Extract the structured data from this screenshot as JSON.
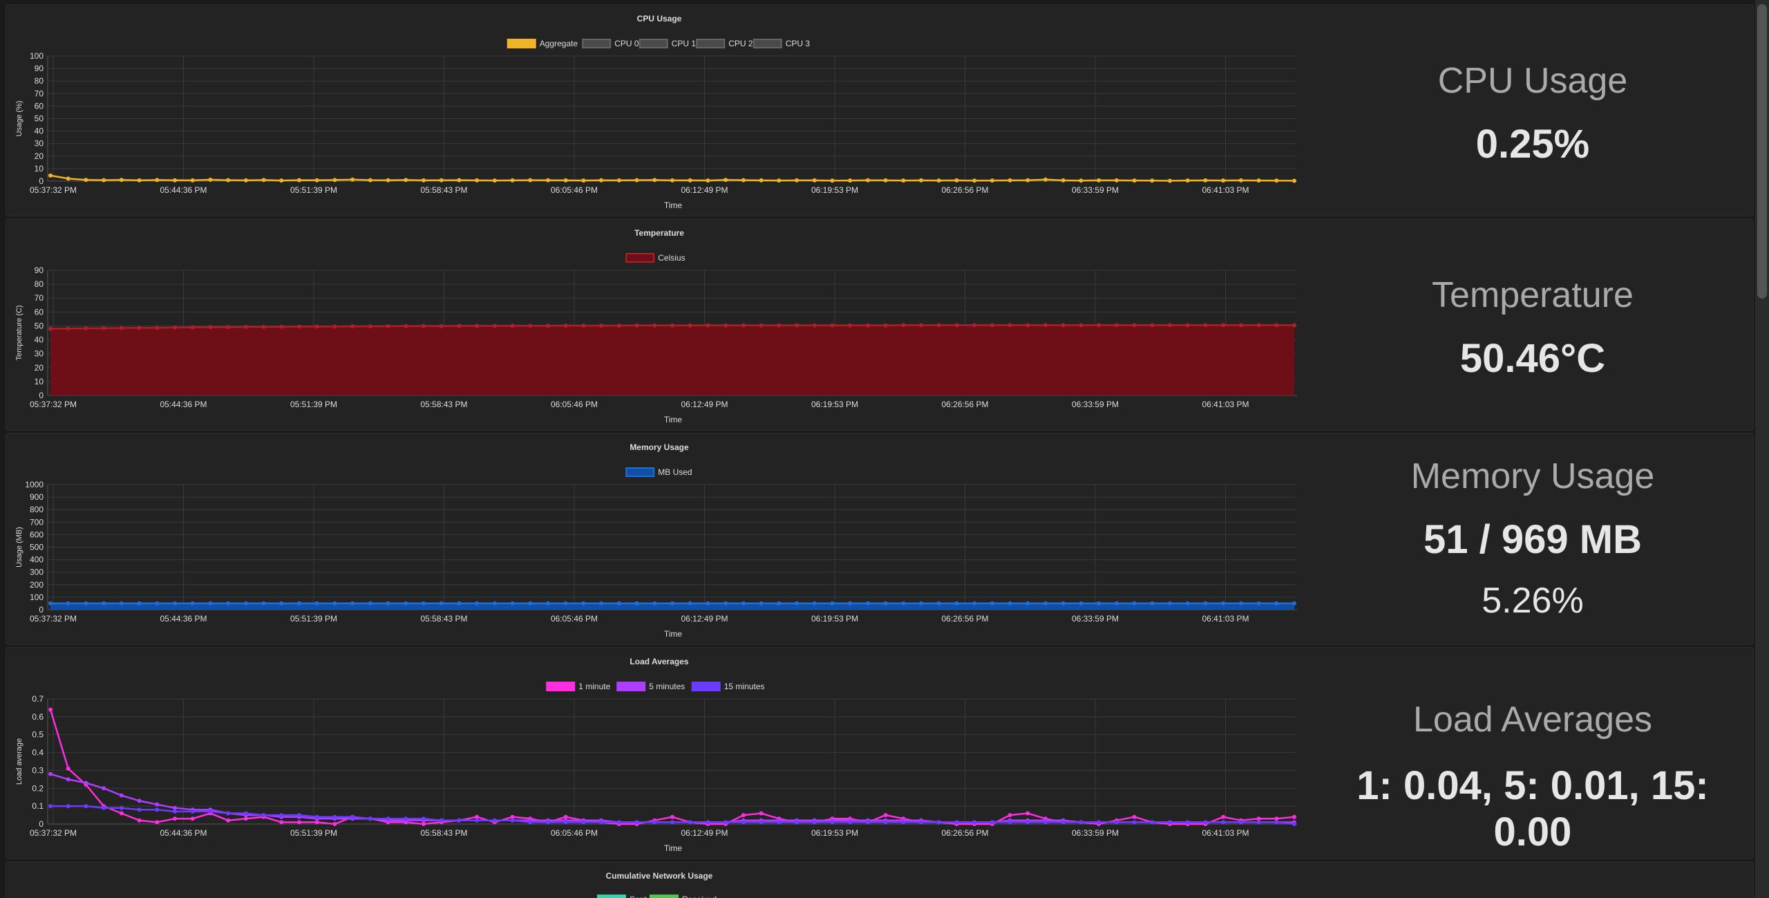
{
  "colors": {
    "background": "#1a1a1a",
    "panel": "#232323",
    "grid": "#3a3a3a",
    "text": "#dddddd"
  },
  "time_labels": [
    "05:37:32 PM",
    "05:44:36 PM",
    "05:51:39 PM",
    "05:58:43 PM",
    "06:05:46 PM",
    "06:12:49 PM",
    "06:19:53 PM",
    "06:26:56 PM",
    "06:33:59 PM",
    "06:41:03 PM"
  ],
  "panels": [
    {
      "id": "cpu",
      "stat_title": "CPU Usage",
      "stat_value": "0.25%"
    },
    {
      "id": "temp",
      "stat_title": "Temperature",
      "stat_value": "50.46°C"
    },
    {
      "id": "mem",
      "stat_title": "Memory Usage",
      "stat_value": "51 / 969 MB",
      "stat_sub": "5.26%"
    },
    {
      "id": "load",
      "stat_title": "Load Averages",
      "stat_value": "1: 0.04, 5: 0.01, 15: 0.00"
    },
    {
      "id": "net"
    }
  ],
  "chart_data": [
    {
      "type": "line",
      "title": "CPU Usage",
      "xlabel": "Time",
      "ylabel": "Usage (%)",
      "ylim": [
        0,
        100
      ],
      "yticks": [
        100,
        90,
        80,
        70,
        60,
        50,
        40,
        30,
        20,
        10,
        0
      ],
      "legend_position": "top",
      "series": [
        {
          "name": "Aggregate",
          "color": "#f0b429",
          "hidden": false,
          "values": [
            4.5,
            2,
            1,
            0.8,
            1,
            0.6,
            0.9,
            0.7,
            0.6,
            1.1,
            0.8,
            0.6,
            0.9,
            0.5,
            0.8,
            0.7,
            0.9,
            1.2,
            0.8,
            0.7,
            0.9,
            0.6,
            0.7,
            0.8,
            0.6,
            0.5,
            0.6,
            0.8,
            0.7,
            0.6,
            0.5,
            0.7,
            0.6,
            0.8,
            0.9,
            0.6,
            0.6,
            0.5,
            1,
            0.8,
            0.6,
            0.5,
            0.6,
            0.6,
            0.4,
            0.5,
            0.7,
            0.6,
            0.5,
            0.6,
            0.5,
            0.6,
            0.4,
            0.5,
            0.6,
            0.7,
            1.2,
            0.6,
            0.4,
            0.6,
            0.6,
            0.5,
            0.4,
            0.3,
            0.5,
            0.6,
            0.5,
            0.6,
            0.5,
            0.4,
            0.25
          ]
        },
        {
          "name": "CPU 0",
          "color": "#555555",
          "hidden": true
        },
        {
          "name": "CPU 1",
          "color": "#555555",
          "hidden": true
        },
        {
          "name": "CPU 2",
          "color": "#555555",
          "hidden": true
        },
        {
          "name": "CPU 3",
          "color": "#555555",
          "hidden": true
        }
      ]
    },
    {
      "type": "area",
      "title": "Temperature",
      "xlabel": "Time",
      "ylabel": "Temperature (C)",
      "ylim": [
        0,
        90
      ],
      "yticks": [
        90,
        80,
        70,
        60,
        50,
        40,
        30,
        20,
        10,
        0
      ],
      "legend_position": "top",
      "series": [
        {
          "name": "Celsius",
          "color": "#b0202a",
          "fill": "#6e0f17",
          "values": [
            48,
            48.2,
            48.3,
            48.4,
            48.5,
            48.6,
            48.7,
            48.8,
            49,
            49.1,
            49.2,
            49.3,
            49.3,
            49.4,
            49.5,
            49.5,
            49.6,
            49.7,
            49.7,
            49.8,
            49.8,
            49.9,
            49.9,
            50,
            50,
            50,
            50.1,
            50.1,
            50.1,
            50.2,
            50.2,
            50.2,
            50.2,
            50.3,
            50.3,
            50.3,
            50.3,
            50.4,
            50.4,
            50.4,
            50.4,
            50.4,
            50.4,
            50.4,
            50.4,
            50.4,
            50.4,
            50.4,
            50.5,
            50.5,
            50.5,
            50.5,
            50.5,
            50.5,
            50.5,
            50.5,
            50.5,
            50.5,
            50.5,
            50.5,
            50.5,
            50.5,
            50.5,
            50.5,
            50.5,
            50.5,
            50.5,
            50.5,
            50.5,
            50.5,
            50.46
          ]
        }
      ]
    },
    {
      "type": "area",
      "title": "Memory Usage",
      "xlabel": "Time",
      "ylabel": "Usage (MB)",
      "ylim": [
        0,
        1000
      ],
      "yticks": [
        1000,
        900,
        800,
        700,
        600,
        500,
        400,
        300,
        200,
        100,
        0
      ],
      "legend_position": "top",
      "series": [
        {
          "name": "MB Used",
          "color": "#1f6fd6",
          "fill": "#0f4fa8",
          "values": [
            51,
            51,
            51,
            51,
            51,
            51,
            51,
            51,
            51,
            51,
            51,
            51,
            51,
            51,
            51,
            51,
            51,
            51,
            51,
            51,
            51,
            51,
            51,
            51,
            51,
            51,
            51,
            51,
            51,
            51,
            51,
            51,
            51,
            51,
            51,
            51,
            51,
            51,
            51,
            51,
            51,
            51,
            51,
            51,
            51,
            51,
            51,
            51,
            51,
            51,
            51,
            51,
            51,
            51,
            51,
            51,
            51,
            51,
            51,
            51,
            51,
            51,
            51,
            51,
            51,
            51,
            51,
            51,
            51,
            51,
            51
          ]
        }
      ]
    },
    {
      "type": "line",
      "title": "Load Averages",
      "xlabel": "Time",
      "ylabel": "Load average",
      "ylim": [
        0,
        0.7
      ],
      "yticks": [
        0.7,
        0.6,
        0.5,
        0.4,
        0.3,
        0.2,
        0.1,
        0
      ],
      "legend_position": "top",
      "series": [
        {
          "name": "1 minute",
          "color": "#ff2de0",
          "values": [
            0.64,
            0.31,
            0.22,
            0.1,
            0.06,
            0.02,
            0.01,
            0.03,
            0.03,
            0.06,
            0.02,
            0.03,
            0.04,
            0.01,
            0.01,
            0.01,
            0,
            0.04,
            0.03,
            0.01,
            0.01,
            0,
            0.01,
            0.02,
            0.04,
            0.01,
            0.04,
            0.03,
            0.01,
            0.04,
            0.02,
            0.01,
            0,
            0,
            0.02,
            0.04,
            0.01,
            0,
            0,
            0.05,
            0.06,
            0.03,
            0.01,
            0.01,
            0.03,
            0.03,
            0.01,
            0.05,
            0.03,
            0.01,
            0.01,
            0,
            0,
            0,
            0.05,
            0.06,
            0.03,
            0.01,
            0.01,
            0,
            0.02,
            0.04,
            0.01,
            0,
            0,
            0,
            0.04,
            0.02,
            0.03,
            0.03,
            0.04
          ]
        },
        {
          "name": "5 minutes",
          "color": "#b03cff",
          "values": [
            0.28,
            0.25,
            0.23,
            0.2,
            0.16,
            0.13,
            0.11,
            0.09,
            0.08,
            0.08,
            0.06,
            0.05,
            0.05,
            0.04,
            0.04,
            0.03,
            0.03,
            0.03,
            0.03,
            0.02,
            0.02,
            0.02,
            0.02,
            0.02,
            0.02,
            0.02,
            0.02,
            0.02,
            0.02,
            0.02,
            0.02,
            0.02,
            0.01,
            0.01,
            0.01,
            0.01,
            0.01,
            0.01,
            0.01,
            0.02,
            0.02,
            0.02,
            0.02,
            0.02,
            0.02,
            0.02,
            0.02,
            0.02,
            0.02,
            0.02,
            0.01,
            0.01,
            0.01,
            0.01,
            0.02,
            0.02,
            0.02,
            0.02,
            0.01,
            0.01,
            0.01,
            0.01,
            0.01,
            0.01,
            0.01,
            0.01,
            0.01,
            0.01,
            0.01,
            0.01,
            0.01
          ]
        },
        {
          "name": "15 minutes",
          "color": "#6a3cff",
          "values": [
            0.1,
            0.1,
            0.1,
            0.09,
            0.09,
            0.08,
            0.08,
            0.07,
            0.07,
            0.07,
            0.06,
            0.06,
            0.05,
            0.05,
            0.05,
            0.04,
            0.04,
            0.04,
            0.03,
            0.03,
            0.03,
            0.03,
            0.02,
            0.02,
            0.02,
            0.02,
            0.02,
            0.01,
            0.01,
            0.01,
            0.01,
            0.01,
            0.01,
            0.01,
            0.01,
            0.01,
            0.01,
            0.01,
            0.01,
            0.01,
            0.01,
            0.01,
            0.01,
            0.01,
            0.01,
            0.01,
            0.01,
            0.01,
            0.01,
            0.01,
            0.01,
            0.01,
            0.01,
            0.01,
            0.01,
            0.01,
            0.01,
            0.01,
            0.01,
            0.01,
            0.01,
            0.01,
            0.01,
            0.01,
            0.01,
            0.01,
            0.01,
            0.01,
            0.01,
            0.01,
            0.0
          ]
        }
      ]
    },
    {
      "type": "line",
      "title": "Cumulative Network Usage",
      "legend_position": "top",
      "series": [
        {
          "name": "Sent",
          "color": "#2fd6b0"
        },
        {
          "name": "Received",
          "color": "#4cc94c"
        }
      ]
    }
  ]
}
